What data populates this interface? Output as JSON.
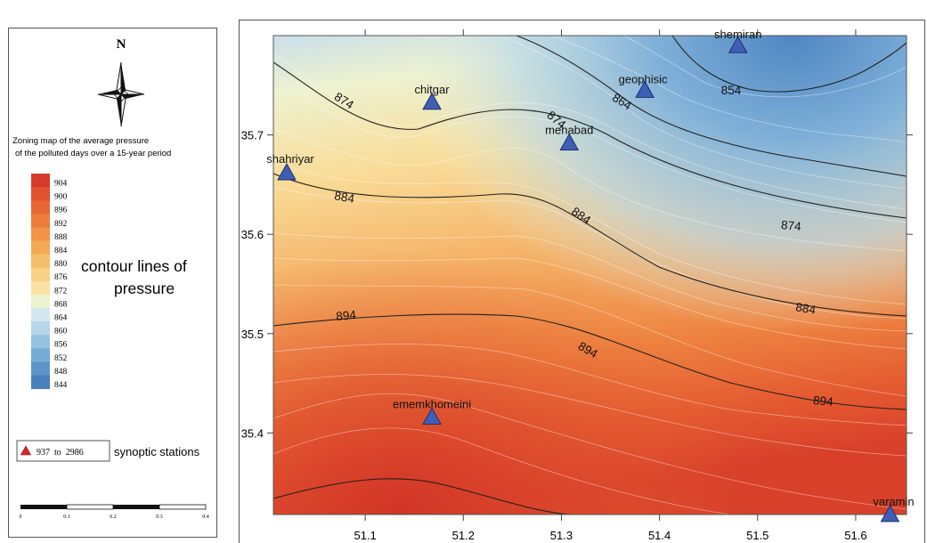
{
  "legend": {
    "north_label": "N",
    "title_line1": "Zoning map of the average pressure",
    "title_line2": "of the polluted days over a 15-year period",
    "scale_values": [
      "904",
      "900",
      "896",
      "892",
      "888",
      "884",
      "880",
      "876",
      "872",
      "868",
      "864",
      "860",
      "856",
      "852",
      "848",
      "844"
    ],
    "scale_colors": [
      "#d73c2a",
      "#e0512d",
      "#e86633",
      "#ee7c3b",
      "#f29347",
      "#f4a957",
      "#f6be6a",
      "#f8d184",
      "#f9e2a3",
      "#eef2cf",
      "#d3e8ee",
      "#b6d7ea",
      "#95c2e1",
      "#76abd6",
      "#5c94ca",
      "#4a7fbd"
    ],
    "contour_caption_line1": "contour lines of",
    "contour_caption_line2": "pressure",
    "station_range": "937  to  2986",
    "station_caption": "synoptic stations",
    "scalebar_ticks": [
      "0",
      "0.1",
      "0.2",
      "0.3",
      "0.4"
    ]
  },
  "map": {
    "x_ticks": [
      "51.1",
      "51.2",
      "51.3",
      "51.4",
      "51.5",
      "51.6"
    ],
    "y_ticks": [
      "35.7",
      "35.6",
      "35.5",
      "35.4"
    ],
    "contour_labels": [
      "874",
      "864",
      "854",
      "884",
      "884",
      "874",
      "884",
      "894",
      "894",
      "894",
      "874"
    ],
    "stations": [
      {
        "name": "shemiran",
        "lon": 51.48,
        "lat": 35.79
      },
      {
        "name": "geophisic",
        "lon": 51.385,
        "lat": 35.745
      },
      {
        "name": "chitgar",
        "lon": 51.168,
        "lat": 35.733
      },
      {
        "name": "mehabad",
        "lon": 51.308,
        "lat": 35.692
      },
      {
        "name": "shahriyar",
        "lon": 51.02,
        "lat": 35.662
      },
      {
        "name": "ememkhomeini",
        "lon": 51.168,
        "lat": 35.416
      },
      {
        "name": "varamin",
        "lon": 51.635,
        "lat": 35.318
      }
    ],
    "station_color": "#3f5fb5"
  }
}
